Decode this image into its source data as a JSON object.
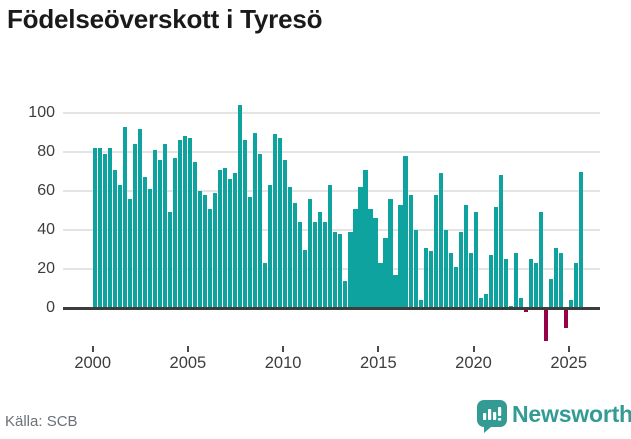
{
  "title": "Födelseöverskott i Tyresö",
  "source": "Källa: SCB",
  "branding": {
    "name": "Newsworthy",
    "icon": "speech-bubble-bar-chart-icon"
  },
  "colors": {
    "bar": "#0fa3a0",
    "negative_bar": "#970147",
    "axis": "#3d3d3d",
    "grid": "#e4e4e4",
    "brand": "#339b93",
    "text": "#3d3d3d",
    "title_text": "#1a1a1a",
    "source_text": "#6b7177"
  },
  "chart_data": {
    "type": "bar",
    "title": "Födelseöverskott i Tyresö",
    "xlabel": "",
    "ylabel": "",
    "frequency": "quarterly",
    "x_start": "2000-Q1",
    "x_tick_labels": [
      "2000",
      "2005",
      "2010",
      "2015",
      "2020",
      "2025"
    ],
    "y_ticks": [
      100,
      80,
      60,
      40,
      20,
      0
    ],
    "ylim": [
      -20,
      110
    ],
    "grid": "horizontal",
    "legend": "none",
    "values": [
      82,
      82,
      79,
      82,
      71,
      63,
      93,
      56,
      84,
      92,
      67,
      61,
      81,
      76,
      84,
      49,
      77,
      86,
      88,
      87,
      75,
      60,
      58,
      51,
      59,
      71,
      72,
      66,
      69,
      104,
      86,
      57,
      90,
      79,
      23,
      63,
      89,
      87,
      76,
      62,
      54,
      44,
      30,
      56,
      44,
      49,
      44,
      63,
      39,
      38,
      14,
      39,
      51,
      62,
      71,
      51,
      46,
      23,
      36,
      56,
      17,
      53,
      78,
      58,
      40,
      4,
      31,
      29,
      58,
      69,
      40,
      28,
      21,
      39,
      53,
      28,
      49,
      5,
      7,
      27,
      52,
      68,
      25,
      1,
      28,
      5,
      -2,
      25,
      23,
      49,
      -17,
      15,
      31,
      28,
      -10,
      4,
      23,
      70
    ]
  }
}
